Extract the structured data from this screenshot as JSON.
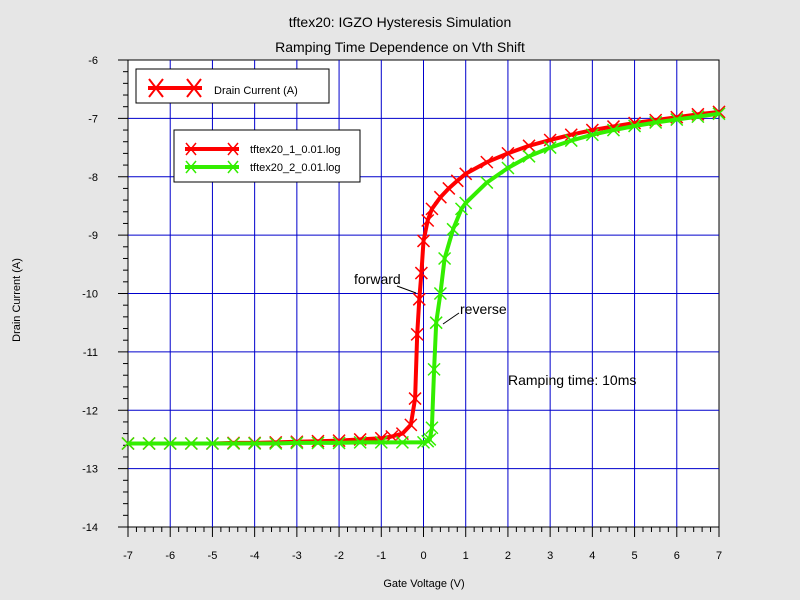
{
  "chart_data": {
    "type": "line",
    "title": "tftex20: IGZO Hysteresis Simulation",
    "subtitle": "Ramping Time Dependence on Vth Shift",
    "xlabel": "Gate Voltage (V)",
    "ylabel": "Drain Current (A)",
    "xlim": [
      -7,
      7
    ],
    "ylim": [
      -14,
      -6
    ],
    "x_ticks": [
      "-7",
      "-6",
      "-5",
      "-4",
      "-3",
      "-2",
      "-1",
      "0",
      "1",
      "2",
      "3",
      "4",
      "5",
      "6",
      "7"
    ],
    "y_ticks": [
      "-6",
      "-7",
      "-8",
      "-9",
      "-10",
      "-11",
      "-12",
      "-13",
      "-14"
    ],
    "grid": true,
    "legend_main": "Drain Current (A)",
    "annotations": {
      "forward": "forward",
      "reverse": "reverse",
      "ramping": "Ramping time: 10ms"
    },
    "series": [
      {
        "name": "tftex20_1_0.01.log",
        "color": "#ff0000",
        "x": [
          -7,
          -6.5,
          -6,
          -5.5,
          -5,
          -4.5,
          -4,
          -3.5,
          -3,
          -2.5,
          -2,
          -1.5,
          -1,
          -0.75,
          -0.5,
          -0.3,
          -0.2,
          -0.15,
          -0.1,
          -0.05,
          0,
          0.1,
          0.2,
          0.4,
          0.6,
          0.8,
          1,
          1.5,
          2,
          2.5,
          3,
          3.5,
          4,
          4.5,
          5,
          5.5,
          6,
          6.5,
          7
        ],
        "y": [
          -12.57,
          -12.57,
          -12.57,
          -12.57,
          -12.57,
          -12.56,
          -12.56,
          -12.55,
          -12.54,
          -12.53,
          -12.52,
          -12.5,
          -12.48,
          -12.45,
          -12.4,
          -12.25,
          -11.8,
          -10.7,
          -10.1,
          -9.65,
          -9.1,
          -8.75,
          -8.55,
          -8.35,
          -8.2,
          -8.07,
          -7.95,
          -7.75,
          -7.6,
          -7.47,
          -7.37,
          -7.28,
          -7.2,
          -7.14,
          -7.08,
          -7.03,
          -6.98,
          -6.93,
          -6.89
        ]
      },
      {
        "name": "tftex20_2_0.01.log",
        "color": "#33ee00",
        "x": [
          -7,
          -6.5,
          -6,
          -5.5,
          -5,
          -4.5,
          -4,
          -3.5,
          -3,
          -2.5,
          -2,
          -1.5,
          -1,
          -0.5,
          0,
          0.1,
          0.15,
          0.2,
          0.25,
          0.3,
          0.4,
          0.5,
          0.7,
          0.9,
          1,
          1.5,
          2,
          2.5,
          3,
          3.5,
          4,
          4.5,
          5,
          5.5,
          6,
          6.5,
          7
        ],
        "y": [
          -12.57,
          -12.57,
          -12.57,
          -12.57,
          -12.57,
          -12.57,
          -12.57,
          -12.57,
          -12.56,
          -12.56,
          -12.56,
          -12.55,
          -12.55,
          -12.55,
          -12.55,
          -12.53,
          -12.5,
          -12.3,
          -11.3,
          -10.5,
          -10.0,
          -9.4,
          -8.9,
          -8.55,
          -8.45,
          -8.1,
          -7.85,
          -7.65,
          -7.5,
          -7.38,
          -7.28,
          -7.2,
          -7.13,
          -7.07,
          -7.02,
          -6.97,
          -6.92
        ]
      }
    ]
  }
}
